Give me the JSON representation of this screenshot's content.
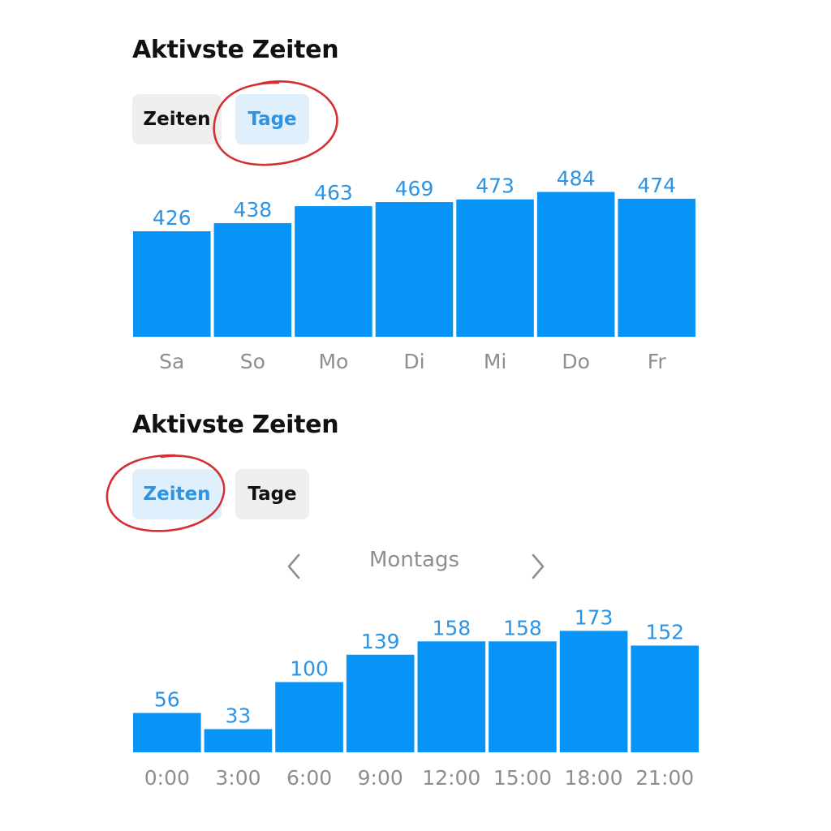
{
  "sections": [
    {
      "title": "Aktivste Zeiten",
      "tabs": [
        {
          "label": "Zeiten",
          "active": false
        },
        {
          "label": "Tage",
          "active": true
        }
      ],
      "highlighted_tab": "Tage"
    },
    {
      "title": "Aktivste Zeiten",
      "tabs": [
        {
          "label": "Zeiten",
          "active": true
        },
        {
          "label": "Tage",
          "active": false
        }
      ],
      "highlighted_tab": "Zeiten",
      "day_selector": {
        "label": "Montags",
        "prev_icon": "chevron-left-icon",
        "next_icon": "chevron-right-icon"
      }
    }
  ],
  "colors": {
    "bar": "#0894f7",
    "value_label": "#2d93e3",
    "category_label": "#8e8e8e",
    "active_tab_bg": "#dff0fc",
    "inactive_tab_bg": "#efefef",
    "annotation_circle": "#d42f33"
  },
  "chart_data": [
    {
      "type": "bar",
      "categories": [
        "Sa",
        "So",
        "Mo",
        "Di",
        "Mi",
        "Do",
        "Fr"
      ],
      "values": [
        426,
        438,
        463,
        469,
        473,
        484,
        474
      ],
      "title": "",
      "xlabel": "",
      "ylabel": "",
      "data_labels": true,
      "grid": false
    },
    {
      "type": "bar",
      "categories": [
        "0:00",
        "3:00",
        "6:00",
        "9:00",
        "12:00",
        "15:00",
        "18:00",
        "21:00"
      ],
      "values": [
        56,
        33,
        100,
        139,
        158,
        158,
        173,
        152
      ],
      "title": "",
      "xlabel": "",
      "ylabel": "",
      "data_labels": true,
      "grid": false
    }
  ]
}
